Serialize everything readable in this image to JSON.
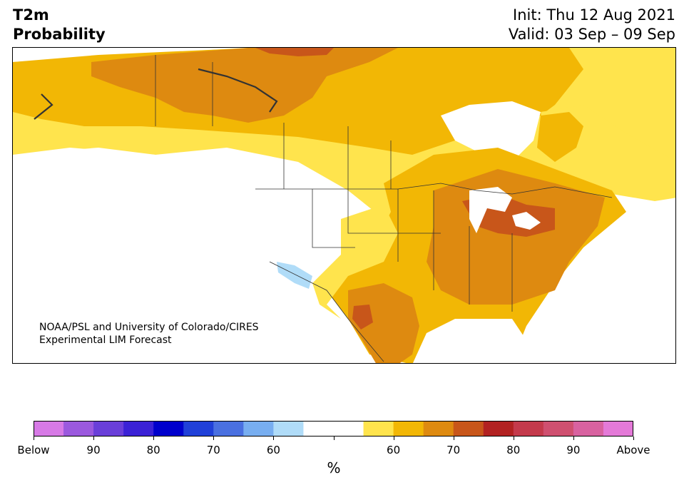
{
  "title": {
    "left_line1": "T2m",
    "left_line2": "Probability",
    "right_line1": "Init: Thu 12 Aug 2021",
    "right_line2": "Valid: 03 Sep – 09 Sep"
  },
  "credit": {
    "line1": "NOAA/PSL and University of Colorado/CIRES",
    "line2": "Experimental LIM Forecast"
  },
  "colorbar": {
    "unit": "%",
    "colors": [
      "#d77ae6",
      "#9b59de",
      "#6a3fd9",
      "#3b22d6",
      "#0000cc",
      "#2040d8",
      "#4a70e0",
      "#78aef0",
      "#b0dcf8",
      "#ffffff",
      "#ffffff",
      "#ffe44d",
      "#f2b705",
      "#de8a10",
      "#c8561a",
      "#b22222",
      "#c43a4c",
      "#cf5070",
      "#d862a0",
      "#e47ad8"
    ],
    "labels": [
      "Below",
      "90",
      "80",
      "70",
      "60",
      "",
      "60",
      "70",
      "80",
      "90",
      "Above"
    ]
  },
  "map": {
    "region": "North America",
    "fill_colors": {
      "yellow": "#ffe44d",
      "gold": "#f2b705",
      "orange": "#de8a10",
      "dark_orange": "#c8561a",
      "light_blue": "#b0dcf8",
      "water": "#ffffff",
      "boundary": "#333333"
    }
  }
}
